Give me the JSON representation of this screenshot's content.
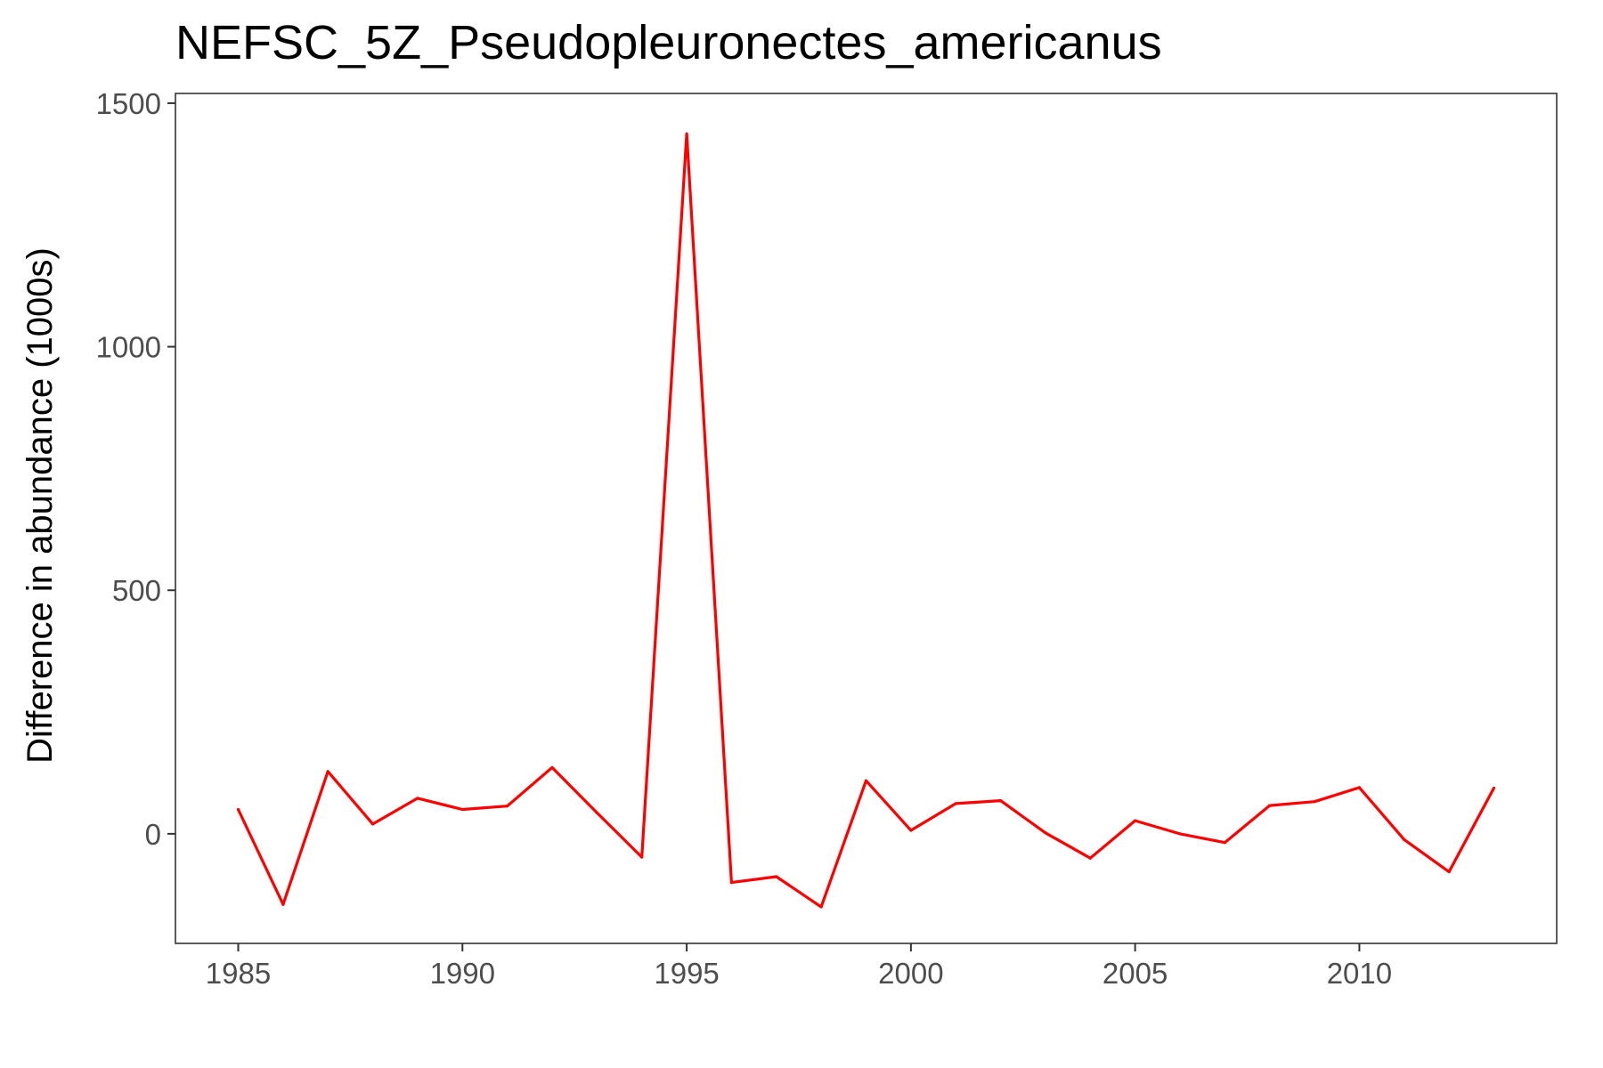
{
  "chart_data": {
    "type": "line",
    "title": "NEFSC_5Z_Pseudopleuronectes_americanus",
    "xlabel": "",
    "ylabel": "Difference in abundance (1000s)",
    "xlim": [
      1983.6,
      2014.4
    ],
    "ylim": [
      -225,
      1520
    ],
    "x_ticks": [
      1985,
      1990,
      1995,
      2000,
      2005,
      2010
    ],
    "y_ticks": [
      0,
      500,
      1000,
      1500
    ],
    "grid": false,
    "legend": "none",
    "line_color": "#ff0000",
    "x": [
      1985,
      1986,
      1987,
      1988,
      1989,
      1990,
      1991,
      1992,
      1993,
      1994,
      1995,
      1996,
      1997,
      1998,
      1999,
      2000,
      2001,
      2002,
      2003,
      2004,
      2005,
      2006,
      2007,
      2008,
      2009,
      2010,
      2011,
      2012,
      2013
    ],
    "y": [
      50,
      -145,
      128,
      20,
      73,
      50,
      57,
      136,
      43,
      -48,
      1437,
      -100,
      -88,
      -150,
      109,
      7,
      62,
      68,
      2,
      -50,
      27,
      0,
      -18,
      58,
      66,
      95,
      -12,
      -78,
      94
    ]
  }
}
